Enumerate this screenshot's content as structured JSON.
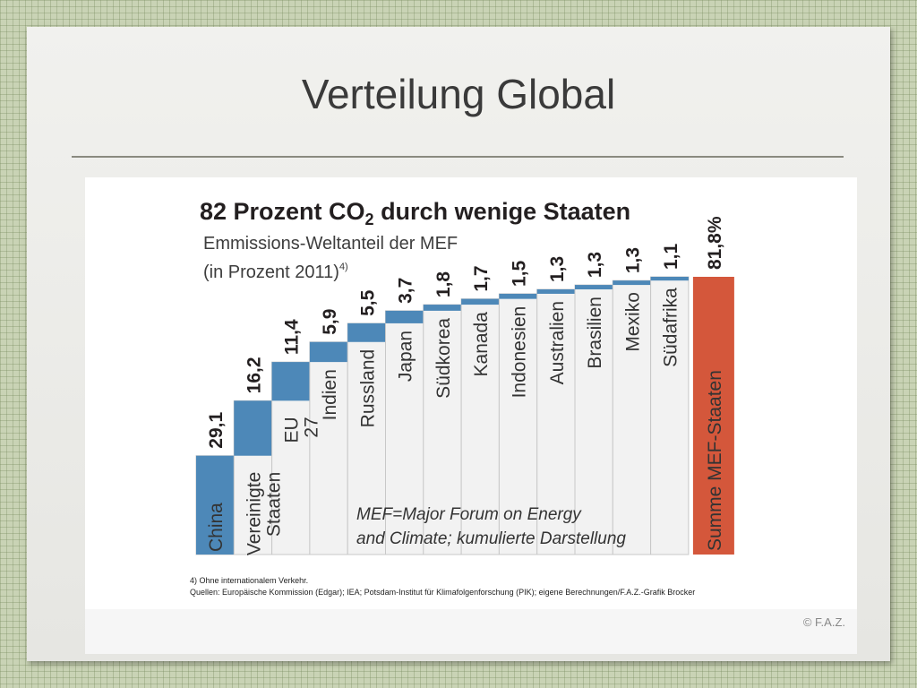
{
  "slide": {
    "title": "Verteilung Global",
    "copyright": "© F.A.Z."
  },
  "colors": {
    "bar_blue": "#4d88b8",
    "total_red": "#d4573b",
    "column_fill": "#f2f2f2",
    "column_border": "#c8c8c8"
  },
  "chart_data": {
    "type": "bar",
    "title": "82 Prozent CO",
    "title_subscript": "2",
    "title_rest": " durch wenige Staaten",
    "subtitle_line1": "Emmissions-Weltanteil der MEF",
    "subtitle_line2": "(in Prozent 2011)",
    "subtitle_footnote": "4)",
    "unit": "Prozent",
    "cumulative": true,
    "categories": [
      "China",
      "Vereinigte Staaten",
      "EU 27",
      "Indien",
      "Russland",
      "Japan",
      "Südkorea",
      "Kanada",
      "Indonesien",
      "Australien",
      "Brasilien",
      "Mexiko",
      "Südafrika"
    ],
    "values": [
      29.1,
      16.2,
      11.4,
      5.9,
      5.5,
      3.7,
      1.8,
      1.7,
      1.5,
      1.3,
      1.3,
      1.3,
      1.1
    ],
    "value_labels": [
      "29,1",
      "16,2",
      "11,4",
      "5,9",
      "5,5",
      "3,7",
      "1,8",
      "1,7",
      "1,5",
      "1,3",
      "1,3",
      "1,3",
      "1,1"
    ],
    "total": {
      "label": "Summe MEF-Staaten",
      "value": 81.8,
      "value_label": "81,8%"
    },
    "note_line1": "MEF=Major Forum on Energy",
    "note_line2": "and Climate; kumulierte Darstellung",
    "footnote": "4) Ohne internationalem Verkehr.",
    "sources": "Quellen: Europäische Kommission (Edgar); IEA; Potsdam-Institut für Klimafolgenforschung (PIK); eigene Berechnungen/F.A.Z.-Grafik Brocker"
  }
}
